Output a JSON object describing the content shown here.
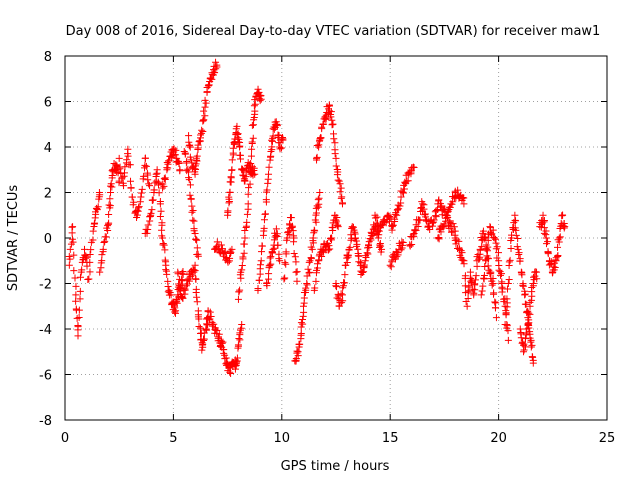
{
  "chart_data": {
    "type": "scatter",
    "title": "Day 008 of 2016, Sidereal Day-to-day VTEC variation (SDTVAR) for receiver maw1",
    "xlabel": "GPS time / hours",
    "ylabel": "SDTVAR / TECUs",
    "xlim": [
      0,
      25
    ],
    "ylim": [
      -8,
      8
    ],
    "xticks": [
      0,
      5,
      10,
      15,
      20,
      25
    ],
    "yticks": [
      -8,
      -6,
      -4,
      -2,
      0,
      2,
      4,
      6,
      8
    ],
    "grid": true,
    "marker": "+",
    "color": "#ff0000",
    "series": [
      {
        "name": "maw1",
        "traces": [
          [
            [
              0.2,
              -1.2
            ],
            [
              0.35,
              0.5
            ],
            [
              0.5,
              -2.5
            ],
            [
              0.6,
              -4.3
            ],
            [
              0.75,
              -1.5
            ],
            [
              0.9,
              -0.5
            ],
            [
              1.1,
              -1.8
            ],
            [
              1.3,
              0.3
            ],
            [
              1.45,
              1.3
            ],
            [
              1.6,
              1.9
            ]
          ],
          [
            [
              1.6,
              -1.5
            ],
            [
              1.8,
              -0.2
            ],
            [
              2.0,
              0.6
            ],
            [
              2.1,
              2.0
            ],
            [
              2.2,
              3.0
            ],
            [
              2.35,
              3.2
            ],
            [
              2.5,
              2.5
            ]
          ],
          [
            [
              2.5,
              3.5
            ],
            [
              2.7,
              2.3
            ],
            [
              2.9,
              3.9
            ],
            [
              3.1,
              1.8
            ],
            [
              3.3,
              0.9
            ],
            [
              3.5,
              1.8
            ],
            [
              3.7,
              3.5
            ],
            [
              3.9,
              2.3
            ]
          ],
          [
            [
              3.7,
              0.2
            ],
            [
              3.95,
              1.0
            ],
            [
              4.1,
              2.0
            ],
            [
              4.25,
              3.0
            ],
            [
              4.4,
              1.5
            ],
            [
              4.5,
              0.0
            ],
            [
              4.65,
              -1.2
            ],
            [
              4.8,
              -2.3
            ],
            [
              4.95,
              -2.9
            ],
            [
              5.1,
              -3.2
            ],
            [
              5.2,
              -2.5
            ],
            [
              5.35,
              -2.1
            ],
            [
              5.45,
              -1.6
            ]
          ],
          [
            [
              4.5,
              2.2
            ],
            [
              4.7,
              3.0
            ],
            [
              4.85,
              3.6
            ],
            [
              5.0,
              3.9
            ],
            [
              5.15,
              3.5
            ],
            [
              5.3,
              3.0
            ]
          ],
          [
            [
              5.2,
              -1.5
            ],
            [
              5.4,
              -2.6
            ],
            [
              5.6,
              -2.1
            ],
            [
              5.8,
              -1.7
            ],
            [
              6.0,
              -1.2
            ],
            [
              6.1,
              -2.8
            ],
            [
              6.25,
              -4.2
            ],
            [
              6.35,
              -4.8
            ],
            [
              6.5,
              -4.0
            ],
            [
              6.6,
              -3.5
            ]
          ],
          [
            [
              5.5,
              3.8
            ],
            [
              5.7,
              2.9
            ],
            [
              5.85,
              1.4
            ],
            [
              6.0,
              0.2
            ],
            [
              6.15,
              -0.8
            ]
          ],
          [
            [
              5.7,
              4.5
            ],
            [
              5.85,
              3.3
            ],
            [
              6.0,
              2.8
            ],
            [
              6.1,
              3.6
            ],
            [
              6.25,
              4.4
            ],
            [
              6.4,
              5.2
            ],
            [
              6.55,
              6.4
            ],
            [
              6.7,
              7.0
            ],
            [
              6.85,
              7.4
            ],
            [
              7.0,
              7.6
            ]
          ],
          [
            [
              6.6,
              -3.2
            ],
            [
              6.8,
              -3.8
            ],
            [
              7.0,
              -4.2
            ],
            [
              7.15,
              -4.5
            ],
            [
              7.3,
              -4.9
            ],
            [
              7.45,
              -5.6
            ],
            [
              7.6,
              -5.9
            ],
            [
              7.75,
              -5.5
            ],
            [
              7.9,
              -5.6
            ],
            [
              8.0,
              -4.7
            ],
            [
              8.15,
              -3.8
            ]
          ],
          [
            [
              6.9,
              -0.5
            ],
            [
              7.1,
              -0.3
            ],
            [
              7.3,
              -0.7
            ],
            [
              7.5,
              -1.0
            ],
            [
              7.7,
              -0.5
            ]
          ],
          [
            [
              7.5,
              1.0
            ],
            [
              7.6,
              2.0
            ],
            [
              7.7,
              3.0
            ],
            [
              7.8,
              4.2
            ],
            [
              7.9,
              4.8
            ],
            [
              8.05,
              4.2
            ],
            [
              8.15,
              3.0
            ],
            [
              8.3,
              2.5
            ],
            [
              8.45,
              3.2
            ],
            [
              8.6,
              3.0
            ],
            [
              8.75,
              2.8
            ]
          ],
          [
            [
              8.0,
              -2.7
            ],
            [
              8.15,
              -1.4
            ],
            [
              8.3,
              0.0
            ],
            [
              8.45,
              1.5
            ],
            [
              8.6,
              3.6
            ],
            [
              8.7,
              5.2
            ],
            [
              8.8,
              6.2
            ],
            [
              8.95,
              6.4
            ],
            [
              9.05,
              6.1
            ]
          ],
          [
            [
              8.9,
              -2.3
            ],
            [
              9.05,
              -1.0
            ],
            [
              9.2,
              0.8
            ],
            [
              9.35,
              2.4
            ],
            [
              9.5,
              3.8
            ],
            [
              9.6,
              4.8
            ],
            [
              9.75,
              5.0
            ],
            [
              9.9,
              4.0
            ],
            [
              10.05,
              4.3
            ]
          ],
          [
            [
              9.3,
              -2.0
            ],
            [
              9.45,
              -1.2
            ],
            [
              9.6,
              -0.5
            ],
            [
              9.75,
              0.4
            ],
            [
              9.9,
              -1.0
            ]
          ],
          [
            [
              10.1,
              -1.8
            ],
            [
              10.25,
              0.0
            ],
            [
              10.4,
              0.9
            ],
            [
              10.55,
              0.0
            ],
            [
              10.7,
              -1.9
            ]
          ],
          [
            [
              10.6,
              -5.4
            ],
            [
              10.75,
              -5.0
            ],
            [
              10.9,
              -4.2
            ],
            [
              11.0,
              -3.0
            ],
            [
              11.15,
              -2.0
            ],
            [
              11.3,
              -1.0
            ],
            [
              11.45,
              0.0
            ],
            [
              11.6,
              1.1
            ],
            [
              11.75,
              2.0
            ]
          ],
          [
            [
              11.5,
              -2.3
            ],
            [
              11.7,
              -1.0
            ],
            [
              11.85,
              -0.6
            ],
            [
              12.0,
              -0.4
            ],
            [
              12.15,
              -0.5
            ],
            [
              12.3,
              0.0
            ],
            [
              12.45,
              1.0
            ],
            [
              12.6,
              0.5
            ]
          ],
          [
            [
              11.6,
              3.5
            ],
            [
              11.75,
              4.3
            ],
            [
              11.9,
              5.0
            ],
            [
              12.05,
              5.4
            ],
            [
              12.2,
              5.8
            ],
            [
              12.35,
              5.0
            ],
            [
              12.5,
              3.5
            ],
            [
              12.65,
              2.5
            ],
            [
              12.8,
              1.5
            ]
          ],
          [
            [
              12.5,
              -2.0
            ],
            [
              12.65,
              -3.0
            ],
            [
              12.8,
              -2.5
            ],
            [
              12.95,
              -1.2
            ],
            [
              13.1,
              -0.5
            ],
            [
              13.25,
              0.5
            ],
            [
              13.4,
              0.0
            ],
            [
              13.55,
              -0.8
            ],
            [
              13.7,
              -1.5
            ],
            [
              13.85,
              -1.0
            ],
            [
              14.0,
              -0.3
            ],
            [
              14.15,
              0.2
            ],
            [
              14.3,
              0.5
            ],
            [
              14.45,
              0.0
            ],
            [
              14.6,
              -0.5
            ]
          ],
          [
            [
              14.3,
              1.0
            ],
            [
              14.5,
              0.3
            ],
            [
              14.7,
              0.8
            ],
            [
              14.9,
              1.0
            ],
            [
              15.1,
              0.5
            ],
            [
              15.3,
              1.0
            ],
            [
              15.5,
              1.8
            ],
            [
              15.7,
              2.4
            ],
            [
              15.9,
              2.9
            ],
            [
              16.1,
              3.1
            ]
          ],
          [
            [
              15.0,
              -1.2
            ],
            [
              15.2,
              -0.8
            ],
            [
              15.4,
              -0.5
            ],
            [
              15.6,
              -0.2
            ]
          ],
          [
            [
              15.9,
              -0.3
            ],
            [
              16.1,
              0.2
            ],
            [
              16.3,
              0.8
            ],
            [
              16.5,
              1.5
            ],
            [
              16.65,
              0.8
            ],
            [
              16.8,
              0.5
            ],
            [
              17.0,
              0.7
            ],
            [
              17.2,
              1.5
            ],
            [
              17.4,
              1.2
            ],
            [
              17.6,
              1.0
            ],
            [
              17.8,
              0.5
            ],
            [
              18.0,
              0.3
            ]
          ],
          [
            [
              17.2,
              0.0
            ],
            [
              17.4,
              0.5
            ],
            [
              17.6,
              1.0
            ],
            [
              17.8,
              1.5
            ],
            [
              18.0,
              2.0
            ],
            [
              18.2,
              1.8
            ],
            [
              18.4,
              1.5
            ]
          ],
          [
            [
              18.0,
              0.0
            ],
            [
              18.2,
              -0.5
            ],
            [
              18.4,
              -1.0
            ],
            [
              18.55,
              -3.0
            ],
            [
              18.7,
              -1.5
            ],
            [
              18.85,
              -2.5
            ],
            [
              19.0,
              -1.0
            ],
            [
              19.15,
              -0.5
            ],
            [
              19.3,
              0.3
            ],
            [
              19.45,
              -0.5
            ],
            [
              19.6,
              -1.5
            ],
            [
              19.75,
              -2.0
            ],
            [
              19.9,
              -3.5
            ]
          ],
          [
            [
              19.2,
              -2.5
            ],
            [
              19.4,
              -1.0
            ],
            [
              19.6,
              0.5
            ],
            [
              19.8,
              0.0
            ],
            [
              20.0,
              -1.0
            ],
            [
              20.15,
              -2.0
            ],
            [
              20.3,
              -3.0
            ],
            [
              20.45,
              -4.5
            ]
          ],
          [
            [
              20.3,
              -3.8
            ],
            [
              20.45,
              -2.0
            ],
            [
              20.6,
              0.0
            ],
            [
              20.75,
              1.0
            ],
            [
              20.9,
              -0.5
            ],
            [
              21.05,
              -1.5
            ],
            [
              21.2,
              -2.5
            ],
            [
              21.35,
              -3.5
            ],
            [
              21.5,
              -4.5
            ],
            [
              21.6,
              -5.5
            ]
          ],
          [
            [
              21.0,
              -4.0
            ],
            [
              21.15,
              -5.0
            ],
            [
              21.3,
              -4.0
            ],
            [
              21.45,
              -3.0
            ],
            [
              21.6,
              -2.0
            ],
            [
              21.75,
              -1.5
            ]
          ],
          [
            [
              21.9,
              0.5
            ],
            [
              22.05,
              1.0
            ],
            [
              22.2,
              0.0
            ],
            [
              22.35,
              -1.0
            ],
            [
              22.5,
              -1.5
            ],
            [
              22.65,
              -1.0
            ],
            [
              22.8,
              0.0
            ],
            [
              22.95,
              1.0
            ],
            [
              23.05,
              0.5
            ]
          ]
        ]
      }
    ]
  }
}
